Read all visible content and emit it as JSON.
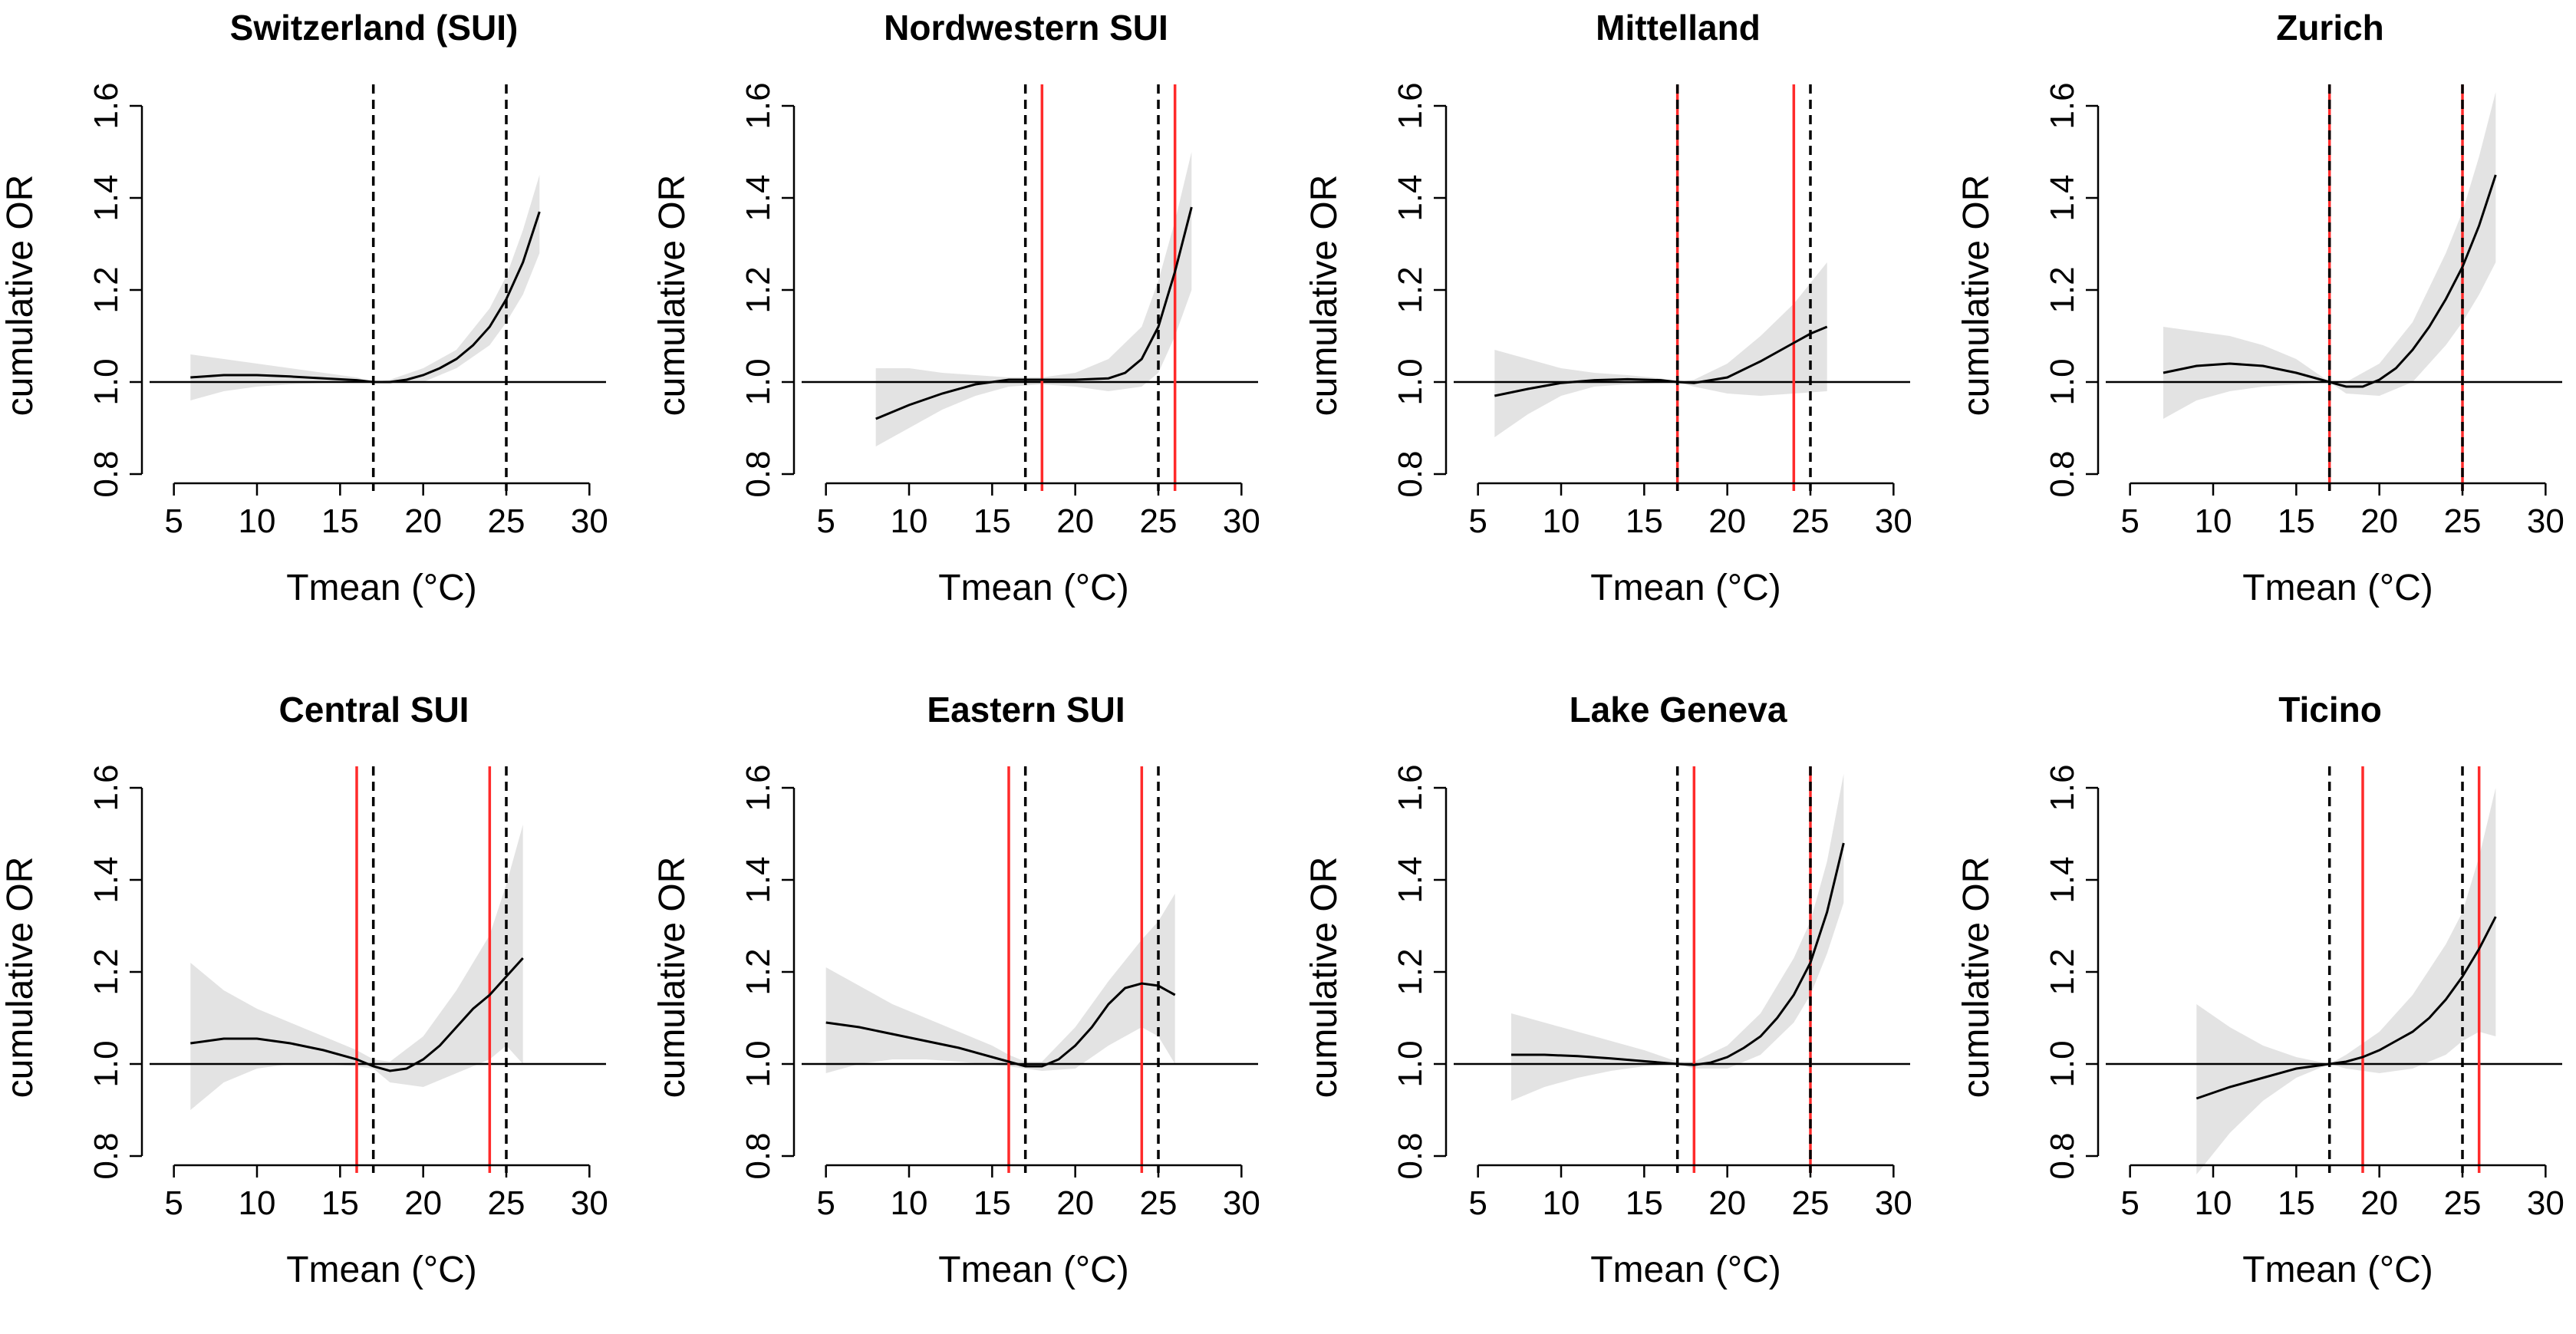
{
  "chart_data": [
    {
      "type": "line",
      "title": "Switzerland (SUI)",
      "xlabel": "Tmean (°C)",
      "ylabel": "cumulative OR",
      "xlim": [
        4,
        31
      ],
      "ylim": [
        0.78,
        1.63
      ],
      "xticks": [
        5,
        10,
        15,
        20,
        25,
        30
      ],
      "yticks": [
        0.8,
        1.0,
        1.2,
        1.4,
        1.6
      ],
      "reference_y": 1.0,
      "dashed_lines": [
        17,
        25
      ],
      "red_lines": [],
      "curve": {
        "x": [
          6,
          8,
          10,
          12,
          14,
          16,
          17,
          18,
          19,
          20,
          21,
          22,
          23,
          24,
          25,
          26,
          27
        ],
        "y": [
          1.01,
          1.015,
          1.015,
          1.012,
          1.008,
          1.004,
          1.0,
          1.0,
          1.005,
          1.015,
          1.03,
          1.05,
          1.08,
          1.12,
          1.18,
          1.26,
          1.37
        ]
      },
      "ci_band": {
        "x": [
          6,
          8,
          10,
          12,
          14,
          16,
          17,
          18,
          20,
          22,
          24,
          25,
          26,
          27
        ],
        "lower": [
          0.96,
          0.98,
          0.99,
          0.995,
          0.998,
          0.999,
          1.0,
          0.998,
          1.0,
          1.03,
          1.08,
          1.13,
          1.19,
          1.28
        ],
        "upper": [
          1.06,
          1.05,
          1.04,
          1.03,
          1.02,
          1.01,
          1.0,
          1.005,
          1.03,
          1.07,
          1.16,
          1.23,
          1.33,
          1.45
        ]
      }
    },
    {
      "type": "line",
      "title": "Nordwestern SUI",
      "xlabel": "Tmean (°C)",
      "ylabel": "cumulative OR",
      "xlim": [
        4,
        31
      ],
      "ylim": [
        0.78,
        1.63
      ],
      "xticks": [
        5,
        10,
        15,
        20,
        25,
        30
      ],
      "yticks": [
        0.8,
        1.0,
        1.2,
        1.4,
        1.6
      ],
      "reference_y": 1.0,
      "dashed_lines": [
        17,
        25
      ],
      "red_lines": [
        18,
        26
      ],
      "curve": {
        "x": [
          8,
          10,
          12,
          14,
          16,
          18,
          20,
          22,
          23,
          24,
          25,
          26,
          27
        ],
        "y": [
          0.92,
          0.95,
          0.975,
          0.995,
          1.005,
          1.005,
          1.005,
          1.008,
          1.02,
          1.05,
          1.12,
          1.24,
          1.38
        ]
      },
      "ci_band": {
        "x": [
          8,
          10,
          12,
          14,
          16,
          18,
          20,
          22,
          24,
          25,
          26,
          27
        ],
        "lower": [
          0.86,
          0.9,
          0.94,
          0.97,
          0.99,
          0.995,
          0.99,
          0.98,
          0.99,
          1.02,
          1.1,
          1.2
        ],
        "upper": [
          1.03,
          1.03,
          1.02,
          1.015,
          1.01,
          1.01,
          1.02,
          1.05,
          1.12,
          1.22,
          1.35,
          1.5
        ]
      }
    },
    {
      "type": "line",
      "title": "Mittelland",
      "xlabel": "Tmean (°C)",
      "ylabel": "cumulative OR",
      "xlim": [
        4,
        31
      ],
      "ylim": [
        0.78,
        1.63
      ],
      "xticks": [
        5,
        10,
        15,
        20,
        25,
        30
      ],
      "yticks": [
        0.8,
        1.0,
        1.2,
        1.4,
        1.6
      ],
      "reference_y": 1.0,
      "dashed_lines": [
        17,
        25
      ],
      "red_lines": [
        17,
        24
      ],
      "curve": {
        "x": [
          6,
          8,
          10,
          12,
          14,
          16,
          17,
          18,
          20,
          22,
          24,
          25,
          26
        ],
        "y": [
          0.97,
          0.985,
          0.998,
          1.004,
          1.006,
          1.004,
          1.0,
          0.998,
          1.01,
          1.045,
          1.085,
          1.105,
          1.12
        ]
      },
      "ci_band": {
        "x": [
          6,
          8,
          10,
          12,
          14,
          16,
          17,
          18,
          20,
          22,
          24,
          26
        ],
        "lower": [
          0.88,
          0.93,
          0.97,
          0.99,
          0.995,
          0.998,
          1.0,
          0.99,
          0.975,
          0.97,
          0.975,
          0.98
        ],
        "upper": [
          1.07,
          1.05,
          1.03,
          1.02,
          1.015,
          1.008,
          1.0,
          1.005,
          1.04,
          1.1,
          1.17,
          1.26
        ]
      }
    },
    {
      "type": "line",
      "title": "Zurich",
      "xlabel": "Tmean (°C)",
      "ylabel": "cumulative OR",
      "xlim": [
        4,
        31
      ],
      "ylim": [
        0.78,
        1.63
      ],
      "xticks": [
        5,
        10,
        15,
        20,
        25,
        30
      ],
      "yticks": [
        0.8,
        1.0,
        1.2,
        1.4,
        1.6
      ],
      "reference_y": 1.0,
      "dashed_lines": [
        17,
        25
      ],
      "red_lines": [
        17,
        25
      ],
      "curve": {
        "x": [
          7,
          9,
          11,
          13,
          15,
          17,
          18,
          19,
          20,
          21,
          22,
          23,
          24,
          25,
          26,
          27
        ],
        "y": [
          1.02,
          1.035,
          1.04,
          1.035,
          1.02,
          1.0,
          0.99,
          0.99,
          1.005,
          1.03,
          1.07,
          1.12,
          1.18,
          1.25,
          1.34,
          1.45
        ]
      },
      "ci_band": {
        "x": [
          7,
          9,
          11,
          13,
          15,
          17,
          18,
          20,
          22,
          24,
          25,
          26,
          27
        ],
        "lower": [
          0.92,
          0.96,
          0.98,
          0.99,
          0.995,
          1.0,
          0.975,
          0.97,
          1.0,
          1.08,
          1.13,
          1.19,
          1.26
        ],
        "upper": [
          1.12,
          1.11,
          1.1,
          1.08,
          1.05,
          1.0,
          1.0,
          1.04,
          1.13,
          1.28,
          1.37,
          1.49,
          1.63
        ]
      }
    },
    {
      "type": "line",
      "title": "Central SUI",
      "xlabel": "Tmean (°C)",
      "ylabel": "cumulative OR",
      "xlim": [
        4,
        31
      ],
      "ylim": [
        0.78,
        1.63
      ],
      "xticks": [
        5,
        10,
        15,
        20,
        25,
        30
      ],
      "yticks": [
        0.8,
        1.0,
        1.2,
        1.4,
        1.6
      ],
      "reference_y": 1.0,
      "dashed_lines": [
        17,
        25
      ],
      "red_lines": [
        16,
        24
      ],
      "curve": {
        "x": [
          6,
          8,
          10,
          12,
          14,
          16,
          17,
          18,
          19,
          20,
          21,
          22,
          23,
          24,
          25,
          26
        ],
        "y": [
          1.045,
          1.055,
          1.055,
          1.045,
          1.03,
          1.01,
          0.995,
          0.985,
          0.99,
          1.01,
          1.04,
          1.08,
          1.12,
          1.15,
          1.19,
          1.23
        ]
      },
      "ci_band": {
        "x": [
          6,
          8,
          10,
          12,
          14,
          16,
          17,
          18,
          20,
          22,
          24,
          25,
          26
        ],
        "lower": [
          0.9,
          0.96,
          0.99,
          1.0,
          1.0,
          0.995,
          0.99,
          0.96,
          0.95,
          0.98,
          1.01,
          1.04,
          1.0
        ],
        "upper": [
          1.22,
          1.16,
          1.12,
          1.09,
          1.06,
          1.03,
          1.01,
          1.005,
          1.06,
          1.16,
          1.28,
          1.39,
          1.52
        ]
      }
    },
    {
      "type": "line",
      "title": "Eastern SUI",
      "xlabel": "Tmean (°C)",
      "ylabel": "cumulative OR",
      "xlim": [
        4,
        31
      ],
      "ylim": [
        0.78,
        1.63
      ],
      "xticks": [
        5,
        10,
        15,
        20,
        25,
        30
      ],
      "yticks": [
        0.8,
        1.0,
        1.2,
        1.4,
        1.6
      ],
      "reference_y": 1.0,
      "dashed_lines": [
        17,
        25
      ],
      "red_lines": [
        16,
        24
      ],
      "curve": {
        "x": [
          5,
          7,
          9,
          11,
          13,
          15,
          16,
          17,
          18,
          19,
          20,
          21,
          22,
          23,
          24,
          25,
          26
        ],
        "y": [
          1.09,
          1.08,
          1.065,
          1.05,
          1.035,
          1.015,
          1.005,
          0.995,
          0.995,
          1.01,
          1.04,
          1.08,
          1.13,
          1.165,
          1.175,
          1.17,
          1.15
        ]
      },
      "ci_band": {
        "x": [
          5,
          7,
          9,
          11,
          13,
          15,
          16,
          17,
          18,
          20,
          22,
          24,
          25,
          26
        ],
        "lower": [
          0.98,
          1.0,
          1.01,
          1.01,
          1.005,
          0.998,
          0.995,
          0.99,
          0.985,
          0.99,
          1.04,
          1.08,
          1.06,
          1.0
        ],
        "upper": [
          1.21,
          1.17,
          1.13,
          1.1,
          1.07,
          1.04,
          1.02,
          1.005,
          1.005,
          1.08,
          1.18,
          1.27,
          1.31,
          1.37
        ]
      }
    },
    {
      "type": "line",
      "title": "Lake Geneva",
      "xlabel": "Tmean (°C)",
      "ylabel": "cumulative OR",
      "xlim": [
        4,
        31
      ],
      "ylim": [
        0.78,
        1.63
      ],
      "xticks": [
        5,
        10,
        15,
        20,
        25,
        30
      ],
      "yticks": [
        0.8,
        1.0,
        1.2,
        1.4,
        1.6
      ],
      "reference_y": 1.0,
      "dashed_lines": [
        17,
        25
      ],
      "red_lines": [
        18,
        25
      ],
      "curve": {
        "x": [
          7,
          9,
          11,
          13,
          15,
          17,
          18,
          19,
          20,
          21,
          22,
          23,
          24,
          25,
          26,
          27
        ],
        "y": [
          1.02,
          1.02,
          1.017,
          1.012,
          1.006,
          1.0,
          0.998,
          1.003,
          1.015,
          1.035,
          1.06,
          1.1,
          1.15,
          1.22,
          1.33,
          1.48
        ]
      },
      "ci_band": {
        "x": [
          7,
          9,
          11,
          13,
          15,
          17,
          18,
          20,
          22,
          24,
          25,
          26,
          27
        ],
        "lower": [
          0.92,
          0.95,
          0.97,
          0.985,
          0.995,
          1.0,
          0.99,
          0.99,
          1.02,
          1.09,
          1.15,
          1.24,
          1.35
        ],
        "upper": [
          1.11,
          1.09,
          1.07,
          1.05,
          1.03,
          1.005,
          1.005,
          1.04,
          1.11,
          1.23,
          1.31,
          1.44,
          1.63
        ]
      }
    },
    {
      "type": "line",
      "title": "Ticino",
      "xlabel": "Tmean (°C)",
      "ylabel": "cumulative OR",
      "xlim": [
        4,
        31
      ],
      "ylim": [
        0.78,
        1.63
      ],
      "xticks": [
        5,
        10,
        15,
        20,
        25,
        30
      ],
      "yticks": [
        0.8,
        1.0,
        1.2,
        1.4,
        1.6
      ],
      "reference_y": 1.0,
      "dashed_lines": [
        17,
        25
      ],
      "red_lines": [
        19,
        26
      ],
      "curve": {
        "x": [
          9,
          11,
          13,
          15,
          17,
          18,
          19,
          20,
          21,
          22,
          23,
          24,
          25,
          26,
          27
        ],
        "y": [
          0.925,
          0.95,
          0.97,
          0.99,
          1.0,
          1.005,
          1.015,
          1.03,
          1.05,
          1.07,
          1.1,
          1.14,
          1.19,
          1.25,
          1.32
        ]
      },
      "ci_band": {
        "x": [
          9,
          11,
          13,
          15,
          17,
          18,
          20,
          22,
          24,
          25,
          26,
          27
        ],
        "lower": [
          0.76,
          0.85,
          0.92,
          0.97,
          1.0,
          0.99,
          0.98,
          0.99,
          1.02,
          1.05,
          1.07,
          1.06
        ],
        "upper": [
          1.13,
          1.08,
          1.04,
          1.015,
          1.0,
          1.02,
          1.07,
          1.15,
          1.26,
          1.33,
          1.45,
          1.6
        ]
      }
    }
  ]
}
